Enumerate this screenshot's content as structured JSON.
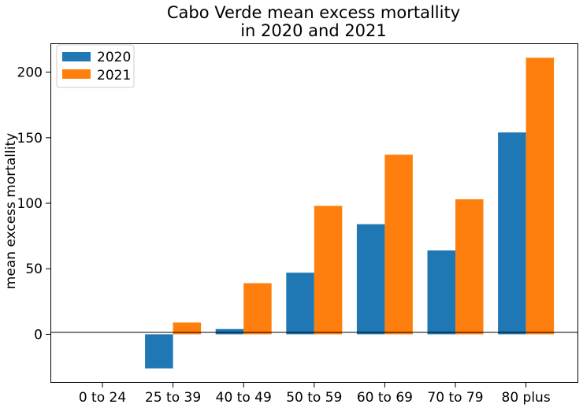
{
  "chart_data": {
    "type": "bar",
    "title_line1": "Cabo Verde mean excess mortallity",
    "title_line2": "in 2020 and 2021",
    "xlabel": "",
    "ylabel": "mean excess mortallity",
    "categories": [
      "0 to 24",
      "25 to 39",
      "40 to 49",
      "50 to 59",
      "60 to 69",
      "70 to 79",
      "80 plus"
    ],
    "series": [
      {
        "name": "2020",
        "color": "#1f77b4",
        "values": [
          0,
          -26,
          4,
          47,
          84,
          64,
          154
        ]
      },
      {
        "name": "2021",
        "color": "#ff7f0e",
        "values": [
          0,
          9,
          39,
          98,
          137,
          103,
          211
        ]
      }
    ],
    "ylim": [
      -37,
      222
    ],
    "yticks": [
      0,
      50,
      100,
      150,
      200
    ],
    "zero_line": true,
    "grid": false,
    "legend_position": "top-left"
  }
}
